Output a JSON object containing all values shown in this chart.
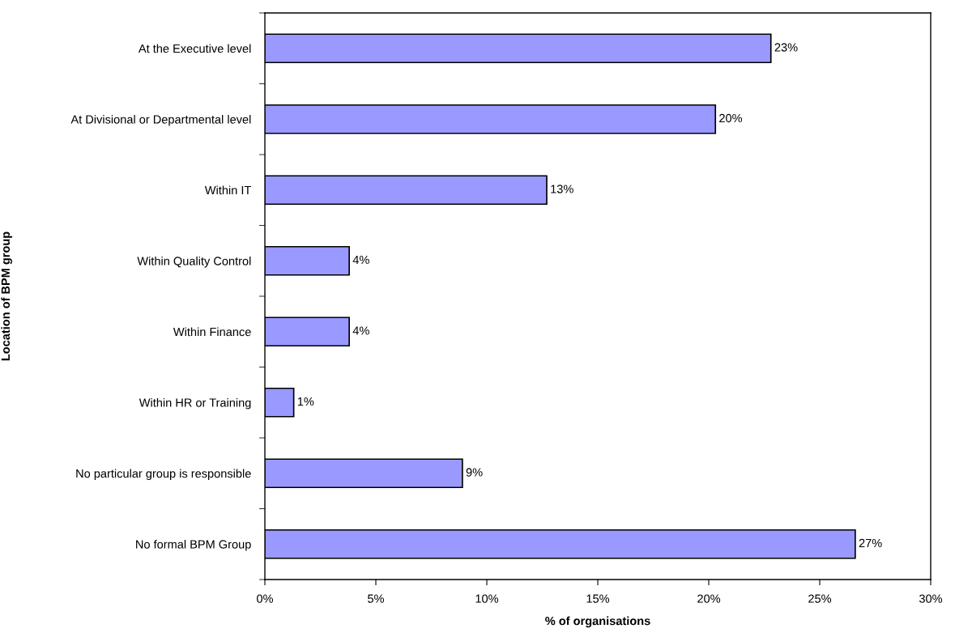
{
  "chart_data": {
    "type": "bar",
    "orientation": "horizontal",
    "categories": [
      "At the Executive level",
      "At Divisional or Departmental level",
      "Within IT",
      "Within Quality Control",
      "Within Finance",
      "Within HR or Training",
      "No particular group is responsible",
      "No formal BPM Group"
    ],
    "values": [
      22.8,
      20.3,
      12.7,
      3.8,
      3.8,
      1.3,
      8.9,
      26.6
    ],
    "value_labels": [
      "23%",
      "20%",
      "13%",
      "4%",
      "4%",
      "1%",
      "9%",
      "27%"
    ],
    "color": "#9999ff",
    "xlim": [
      0,
      30
    ],
    "xticks": [
      {
        "value": 0,
        "label": "0%"
      },
      {
        "value": 5,
        "label": "5%"
      },
      {
        "value": 10,
        "label": "10%"
      },
      {
        "value": 15,
        "label": "15%"
      },
      {
        "value": 20,
        "label": "20%"
      },
      {
        "value": 25,
        "label": "25%"
      },
      {
        "value": 30,
        "label": "30%"
      }
    ],
    "xlabel": "% of organisations",
    "ylabel": "Location of BPM group"
  }
}
